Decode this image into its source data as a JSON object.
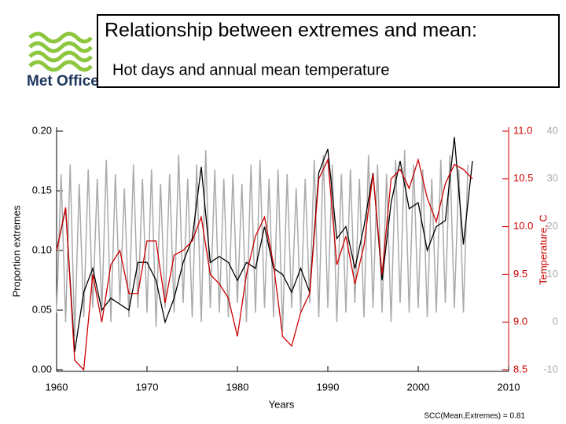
{
  "header": {
    "logo_text": "Met Office",
    "title": "Relationship between extremes and mean:",
    "subtitle": "Hot days and annual mean temperature"
  },
  "chart_data": {
    "type": "line",
    "xlabel": "Years",
    "ylabel": "Proportion extremes",
    "y2label": "Temperature, C",
    "annotation": "SCC(Mean,Extremes) = 0.81",
    "xlim": [
      1960,
      2010
    ],
    "xticks": [
      1960,
      1970,
      1980,
      1990,
      2000,
      2010
    ],
    "ylim": [
      0,
      0.2
    ],
    "yticks": [
      {
        "value": 0,
        "label": "0.00"
      },
      0.05,
      {
        "value": 0.1,
        "label": "0.10"
      },
      0.15,
      {
        "value": 0.2,
        "label": "0.20"
      }
    ],
    "y2lim": [
      8.5,
      11.0
    ],
    "y2ticks": [
      8.5,
      {
        "value": 9,
        "label": "9.0"
      },
      9.5,
      {
        "value": 10,
        "label": "10.0"
      },
      10.5,
      {
        "value": 11,
        "label": "11.0"
      }
    ],
    "y3lim": [
      -10,
      40
    ],
    "y3ticks": [
      -10,
      0,
      10,
      20,
      30,
      40
    ],
    "x": [
      1960,
      1961,
      1962,
      1963,
      1964,
      1965,
      1966,
      1967,
      1968,
      1969,
      1970,
      1971,
      1972,
      1973,
      1974,
      1975,
      1976,
      1977,
      1978,
      1979,
      1980,
      1981,
      1982,
      1983,
      1984,
      1985,
      1986,
      1987,
      1988,
      1989,
      1990,
      1991,
      1992,
      1993,
      1994,
      1995,
      1996,
      1997,
      1998,
      1999,
      2000,
      2001,
      2002,
      2003,
      2004,
      2005,
      2006
    ],
    "series": [
      {
        "color": "#aaaaaa",
        "axis": "y3",
        "x": [
          1960,
          1960.5,
          1961,
          1961.5,
          1962,
          1962.5,
          1963,
          1963.5,
          1964,
          1964.5,
          1965,
          1965.5,
          1966,
          1966.5,
          1967,
          1967.5,
          1968,
          1968.5,
          1969,
          1969.5,
          1970,
          1970.5,
          1971,
          1971.5,
          1972,
          1972.5,
          1973,
          1973.5,
          1974,
          1974.5,
          1975,
          1975.5,
          1976,
          1976.5,
          1977,
          1977.5,
          1978,
          1978.5,
          1979,
          1979.5,
          1980,
          1980.5,
          1981,
          1981.5,
          1982,
          1982.5,
          1983,
          1983.5,
          1984,
          1984.5,
          1985,
          1985.5,
          1986,
          1986.5,
          1987,
          1987.5,
          1988,
          1988.5,
          1989,
          1989.5,
          1990,
          1990.5,
          1991,
          1991.5,
          1992,
          1992.5,
          1993,
          1993.5,
          1994,
          1994.5,
          1995,
          1995.5,
          1996,
          1996.5,
          1997,
          1997.5,
          1998,
          1998.5,
          1999,
          1999.5,
          2000,
          2000.5,
          2001,
          2001.5,
          2002,
          2002.5,
          2003,
          2003.5,
          2004,
          2004.5,
          2005,
          2005.5
        ],
        "values": [
          2,
          31,
          0,
          33,
          -3,
          29,
          1,
          32,
          3,
          30,
          2,
          34,
          0,
          31,
          4,
          28,
          1,
          33,
          3,
          30,
          2,
          32,
          -1,
          29,
          3,
          31,
          2,
          35,
          4,
          30,
          1,
          33,
          0,
          36,
          3,
          32,
          2,
          30,
          1,
          31,
          4,
          29,
          0,
          33,
          2,
          34,
          3,
          30,
          1,
          32,
          -2,
          31,
          3,
          28,
          2,
          30,
          4,
          34,
          1,
          35,
          3,
          33,
          0,
          31,
          2,
          32,
          4,
          30,
          1,
          35,
          3,
          33,
          2,
          31,
          0,
          34,
          4,
          36,
          2,
          33,
          3,
          32,
          1,
          30,
          2,
          34,
          4,
          35,
          3,
          32,
          2,
          33
        ]
      },
      {
        "color": "#000000",
        "axis": "y",
        "values": [
          0.1,
          0.135,
          0.015,
          0.065,
          0.085,
          0.05,
          0.06,
          0.055,
          0.05,
          0.09,
          0.09,
          0.075,
          0.04,
          0.06,
          0.09,
          0.11,
          0.17,
          0.09,
          0.095,
          0.09,
          0.075,
          0.09,
          0.085,
          0.12,
          0.085,
          0.08,
          0.065,
          0.085,
          0.065,
          0.165,
          0.185,
          0.11,
          0.12,
          0.085,
          0.12,
          0.165,
          0.075,
          0.14,
          0.175,
          0.135,
          0.14,
          0.1,
          0.12,
          0.125,
          0.195,
          0.105,
          0.175
        ]
      },
      {
        "color": "#cc0000",
        "axis": "y2",
        "values": [
          9.75,
          10.2,
          8.6,
          8.5,
          9.5,
          9.0,
          9.6,
          9.75,
          9.3,
          9.3,
          9.85,
          9.85,
          9.2,
          9.7,
          9.75,
          9.85,
          10.1,
          9.5,
          9.4,
          9.25,
          8.85,
          9.5,
          9.9,
          10.1,
          9.6,
          8.85,
          8.75,
          9.1,
          9.3,
          10.5,
          10.7,
          9.6,
          9.9,
          9.4,
          9.8,
          10.55,
          9.5,
          10.5,
          10.6,
          10.4,
          10.7,
          10.3,
          10.05,
          10.45,
          10.65,
          10.6,
          10.5
        ]
      }
    ]
  }
}
